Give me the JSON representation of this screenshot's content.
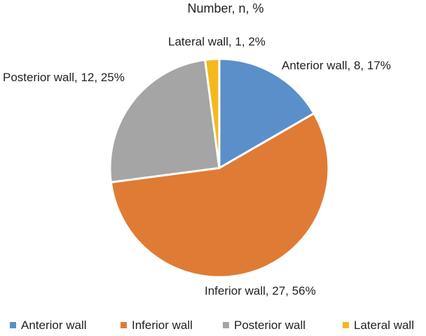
{
  "chart_data": {
    "type": "pie",
    "title": "Number, n, %",
    "slices": [
      {
        "name": "Anterior wall",
        "value": 8,
        "percent": 17,
        "label": "Anterior wall, 8, 17%",
        "color": "#5b8fc9"
      },
      {
        "name": "Inferior wall",
        "value": 27,
        "percent": 56,
        "label": "Inferior wall, 27, 56%",
        "color": "#e07b35"
      },
      {
        "name": "Posterior wall",
        "value": 12,
        "percent": 25,
        "label": "Posterior wall, 12, 25%",
        "color": "#a5a5a5"
      },
      {
        "name": "Lateral wall",
        "value": 1,
        "percent": 2,
        "label": "Lateral wall, 1, 2%",
        "color": "#f5b91d"
      }
    ],
    "legend": {
      "placement": "bottom",
      "entries": [
        "Anterior wall",
        "Inferior wall",
        "Posterior wall",
        "Lateral wall"
      ]
    }
  }
}
